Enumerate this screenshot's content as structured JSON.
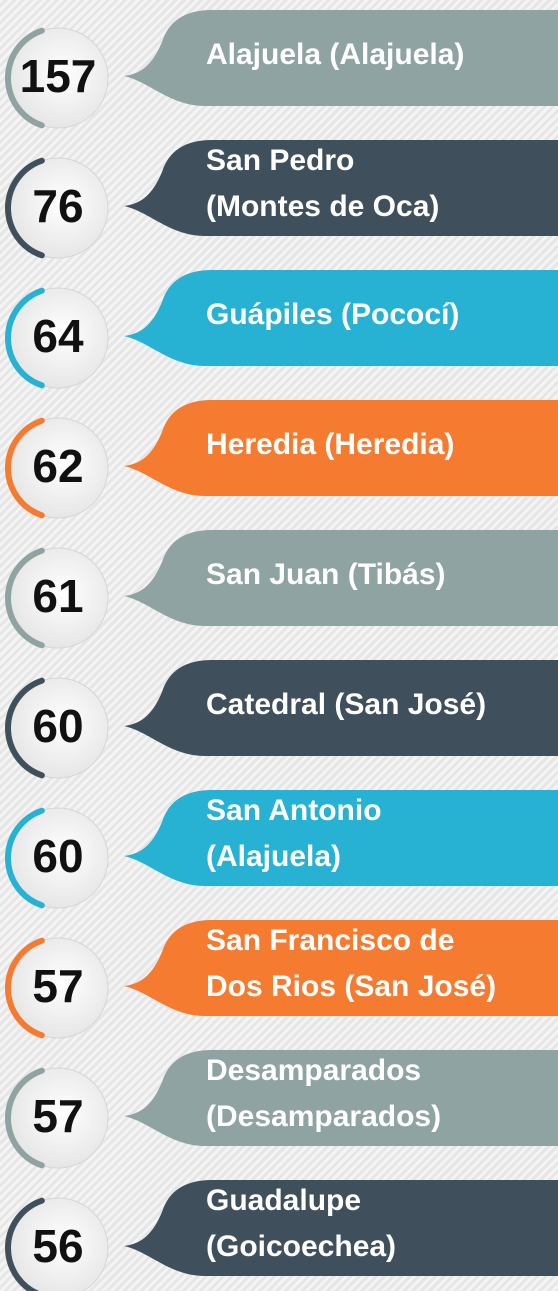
{
  "items": [
    {
      "value": 157,
      "label": [
        "Alajuela (Alajuela)"
      ],
      "color": "#8fa3a2"
    },
    {
      "value": 76,
      "label": [
        "San Pedro",
        "(Montes de Oca)"
      ],
      "color": "#3f505c"
    },
    {
      "value": 64,
      "label": [
        "Guápiles (Pococí)"
      ],
      "color": "#27b2d3"
    },
    {
      "value": 62,
      "label": [
        "Heredia (Heredia)"
      ],
      "color": "#f47b2f"
    },
    {
      "value": 61,
      "label": [
        "San Juan (Tibás)"
      ],
      "color": "#8fa3a2"
    },
    {
      "value": 60,
      "label": [
        "Catedral (San José)"
      ],
      "color": "#3f505c"
    },
    {
      "value": 60,
      "label": [
        "San Antonio",
        "(Alajuela)"
      ],
      "color": "#27b2d3"
    },
    {
      "value": 57,
      "label": [
        "San Francisco de",
        "Dos Rios (San José)"
      ],
      "color": "#f47b2f"
    },
    {
      "value": 57,
      "label": [
        "Desamparados",
        "(Desamparados)"
      ],
      "color": "#8fa3a2"
    },
    {
      "value": 56,
      "label": [
        "Guadalupe",
        "(Goicoechea)"
      ],
      "color": "#3f505c"
    }
  ]
}
